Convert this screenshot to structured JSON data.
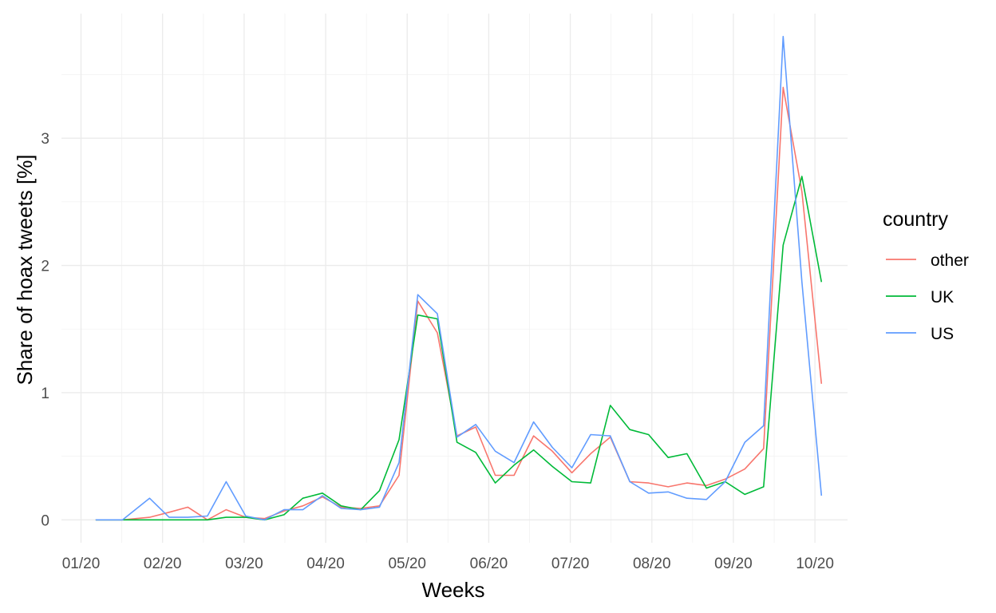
{
  "chart_data": {
    "type": "line",
    "xlabel": "Weeks",
    "ylabel": "Share of hoax tweets [%]",
    "x_tick_labels": [
      "01/20",
      "02/20",
      "03/20",
      "04/20",
      "05/20",
      "06/20",
      "07/20",
      "08/20",
      "09/20",
      "10/20"
    ],
    "y_tick_labels": [
      "0",
      "1",
      "2",
      "3"
    ],
    "y_ticks": [
      0,
      1,
      2,
      3
    ],
    "ylim": [
      -0.18,
      3.98
    ],
    "xlim": [
      -0.24,
      9.4
    ],
    "grid": true,
    "legend": {
      "title": "country",
      "position": "right"
    },
    "series": [
      {
        "name": "other",
        "color": "#F8766D",
        "points": [
          [
            0.18,
            0.0
          ],
          [
            0.51,
            0.0
          ],
          [
            0.84,
            0.02
          ],
          [
            1.08,
            0.06
          ],
          [
            1.31,
            0.1
          ],
          [
            1.55,
            0.0
          ],
          [
            1.78,
            0.08
          ],
          [
            2.02,
            0.02
          ],
          [
            2.25,
            0.01
          ],
          [
            2.49,
            0.07
          ],
          [
            2.72,
            0.11
          ],
          [
            2.96,
            0.18
          ],
          [
            3.19,
            0.1
          ],
          [
            3.43,
            0.09
          ],
          [
            3.66,
            0.11
          ],
          [
            3.9,
            0.35
          ],
          [
            4.13,
            1.72
          ],
          [
            4.37,
            1.47
          ],
          [
            4.61,
            0.66
          ],
          [
            4.84,
            0.73
          ],
          [
            5.08,
            0.35
          ],
          [
            5.31,
            0.35
          ],
          [
            5.55,
            0.66
          ],
          [
            5.78,
            0.54
          ],
          [
            6.02,
            0.37
          ],
          [
            6.25,
            0.52
          ],
          [
            6.49,
            0.65
          ],
          [
            6.73,
            0.3
          ],
          [
            6.96,
            0.29
          ],
          [
            7.2,
            0.26
          ],
          [
            7.43,
            0.29
          ],
          [
            7.67,
            0.27
          ],
          [
            7.9,
            0.32
          ],
          [
            8.14,
            0.4
          ],
          [
            8.37,
            0.56
          ],
          [
            8.61,
            3.4
          ],
          [
            8.84,
            2.58
          ],
          [
            9.08,
            1.07
          ]
        ]
      },
      {
        "name": "UK",
        "color": "#00BA38",
        "points": [
          [
            0.18,
            0.0
          ],
          [
            0.51,
            0.0
          ],
          [
            0.84,
            0.0
          ],
          [
            1.08,
            0.0
          ],
          [
            1.31,
            0.0
          ],
          [
            1.55,
            0.0
          ],
          [
            1.78,
            0.02
          ],
          [
            2.02,
            0.02
          ],
          [
            2.25,
            0.0
          ],
          [
            2.49,
            0.04
          ],
          [
            2.72,
            0.17
          ],
          [
            2.96,
            0.21
          ],
          [
            3.19,
            0.11
          ],
          [
            3.43,
            0.08
          ],
          [
            3.66,
            0.23
          ],
          [
            3.9,
            0.63
          ],
          [
            4.13,
            1.61
          ],
          [
            4.37,
            1.58
          ],
          [
            4.61,
            0.61
          ],
          [
            4.84,
            0.53
          ],
          [
            5.08,
            0.29
          ],
          [
            5.31,
            0.43
          ],
          [
            5.55,
            0.55
          ],
          [
            5.78,
            0.42
          ],
          [
            6.02,
            0.3
          ],
          [
            6.25,
            0.29
          ],
          [
            6.49,
            0.9
          ],
          [
            6.73,
            0.71
          ],
          [
            6.96,
            0.67
          ],
          [
            7.2,
            0.49
          ],
          [
            7.43,
            0.52
          ],
          [
            7.67,
            0.25
          ],
          [
            7.9,
            0.3
          ],
          [
            8.14,
            0.2
          ],
          [
            8.37,
            0.26
          ],
          [
            8.61,
            2.16
          ],
          [
            8.84,
            2.7
          ],
          [
            9.08,
            1.87
          ]
        ]
      },
      {
        "name": "US",
        "color": "#619CFF",
        "points": [
          [
            0.18,
            0.0
          ],
          [
            0.51,
            0.0
          ],
          [
            0.84,
            0.17
          ],
          [
            1.08,
            0.02
          ],
          [
            1.31,
            0.02
          ],
          [
            1.55,
            0.03
          ],
          [
            1.78,
            0.3
          ],
          [
            2.02,
            0.03
          ],
          [
            2.25,
            0.0
          ],
          [
            2.49,
            0.08
          ],
          [
            2.72,
            0.08
          ],
          [
            2.96,
            0.19
          ],
          [
            3.19,
            0.09
          ],
          [
            3.43,
            0.08
          ],
          [
            3.66,
            0.1
          ],
          [
            3.9,
            0.45
          ],
          [
            4.13,
            1.77
          ],
          [
            4.37,
            1.62
          ],
          [
            4.61,
            0.65
          ],
          [
            4.84,
            0.75
          ],
          [
            5.08,
            0.54
          ],
          [
            5.31,
            0.45
          ],
          [
            5.55,
            0.77
          ],
          [
            5.78,
            0.57
          ],
          [
            6.02,
            0.41
          ],
          [
            6.25,
            0.67
          ],
          [
            6.49,
            0.66
          ],
          [
            6.73,
            0.3
          ],
          [
            6.96,
            0.21
          ],
          [
            7.2,
            0.22
          ],
          [
            7.43,
            0.17
          ],
          [
            7.67,
            0.16
          ],
          [
            7.9,
            0.3
          ],
          [
            8.14,
            0.61
          ],
          [
            8.37,
            0.74
          ],
          [
            8.61,
            3.8
          ],
          [
            8.84,
            1.87
          ],
          [
            9.08,
            0.19
          ]
        ]
      }
    ]
  }
}
